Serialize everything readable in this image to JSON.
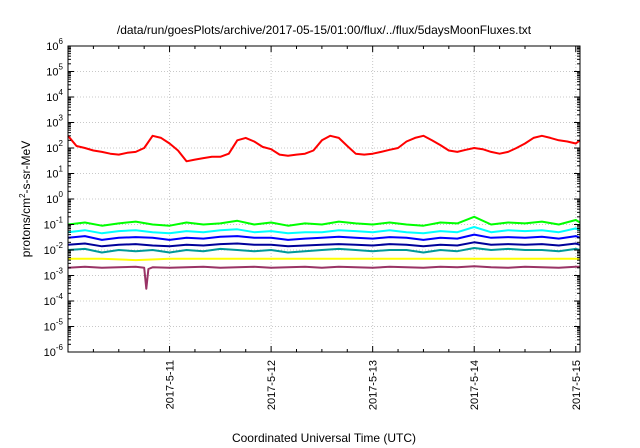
{
  "chart_data": {
    "type": "line",
    "title": "/data/run/goesPlots/archive/2017-05-15/01:00/flux/../flux/5daysMoonFluxes.txt",
    "xlabel": "Coordinated Universal Time (UTC)",
    "ylabel": {
      "prefix": "protons/cm",
      "sup": "2",
      "suffix": "-s-sr-MeV"
    },
    "y_scale": "log",
    "ylim_exp": [
      -6,
      6
    ],
    "y_tick_labels": [
      {
        "base": "10",
        "exp": "6"
      },
      {
        "base": "10",
        "exp": "5"
      },
      {
        "base": "10",
        "exp": "4"
      },
      {
        "base": "10",
        "exp": "3"
      },
      {
        "base": "10",
        "exp": "2"
      },
      {
        "base": "10",
        "exp": "1"
      },
      {
        "base": "10",
        "exp": "0"
      },
      {
        "base": "10",
        "exp": "-1"
      },
      {
        "base": "10",
        "exp": "-2"
      },
      {
        "base": "10",
        "exp": "-3"
      },
      {
        "base": "10",
        "exp": "-4"
      },
      {
        "base": "10",
        "exp": "-5"
      },
      {
        "base": "10",
        "exp": "-6"
      }
    ],
    "x_range": [
      "2017-05-10T00:00",
      "2017-05-15T01:00"
    ],
    "x_ticks": [
      "2017-5-11",
      "2017-5-12",
      "2017-5-13",
      "2017-5-14",
      "2017-5-15"
    ],
    "grid": true,
    "legend": "none",
    "series": [
      {
        "color": "#ff0000",
        "x_hours": [
          0,
          2,
          4,
          6,
          8,
          10,
          12,
          14,
          16,
          18,
          20,
          22,
          24,
          26,
          28,
          30,
          32,
          34,
          36,
          38,
          40,
          42,
          44,
          46,
          48,
          50,
          52,
          54,
          56,
          58,
          60,
          62,
          64,
          66,
          68,
          70,
          72,
          74,
          76,
          78,
          80,
          82,
          84,
          86,
          88,
          90,
          92,
          94,
          96,
          98,
          100,
          102,
          104,
          106,
          108,
          110,
          112,
          114,
          116,
          118,
          120,
          121
        ],
        "y": [
          300,
          120,
          100,
          80,
          70,
          60,
          55,
          65,
          70,
          100,
          300,
          250,
          150,
          80,
          30,
          35,
          40,
          45,
          45,
          60,
          200,
          250,
          180,
          110,
          90,
          55,
          50,
          55,
          60,
          80,
          200,
          300,
          250,
          120,
          60,
          55,
          60,
          70,
          85,
          100,
          180,
          250,
          300,
          200,
          130,
          80,
          70,
          85,
          100,
          90,
          70,
          60,
          70,
          100,
          150,
          250,
          300,
          250,
          200,
          180,
          150,
          200
        ]
      },
      {
        "color": "#00ff00",
        "x_hours": [
          0,
          4,
          8,
          12,
          16,
          20,
          24,
          28,
          32,
          36,
          40,
          44,
          48,
          52,
          56,
          60,
          64,
          68,
          72,
          76,
          80,
          84,
          88,
          92,
          96,
          100,
          104,
          108,
          112,
          116,
          120,
          121
        ],
        "y": [
          0.1,
          0.12,
          0.09,
          0.11,
          0.13,
          0.1,
          0.09,
          0.12,
          0.1,
          0.11,
          0.14,
          0.1,
          0.12,
          0.09,
          0.11,
          0.1,
          0.13,
          0.11,
          0.1,
          0.12,
          0.1,
          0.09,
          0.12,
          0.11,
          0.2,
          0.1,
          0.12,
          0.11,
          0.13,
          0.1,
          0.15,
          0.12
        ]
      },
      {
        "color": "#00ffff",
        "x_hours": [
          0,
          4,
          8,
          12,
          16,
          20,
          24,
          28,
          32,
          36,
          40,
          44,
          48,
          52,
          56,
          60,
          64,
          68,
          72,
          76,
          80,
          84,
          88,
          92,
          96,
          100,
          104,
          108,
          112,
          116,
          120,
          121
        ],
        "y": [
          0.05,
          0.06,
          0.045,
          0.055,
          0.06,
          0.05,
          0.045,
          0.055,
          0.05,
          0.06,
          0.065,
          0.05,
          0.055,
          0.045,
          0.05,
          0.05,
          0.06,
          0.055,
          0.05,
          0.06,
          0.05,
          0.045,
          0.055,
          0.05,
          0.08,
          0.05,
          0.06,
          0.055,
          0.06,
          0.05,
          0.07,
          0.06
        ]
      },
      {
        "color": "#0000ff",
        "x_hours": [
          0,
          4,
          8,
          12,
          16,
          20,
          24,
          28,
          32,
          36,
          40,
          44,
          48,
          52,
          56,
          60,
          64,
          68,
          72,
          76,
          80,
          84,
          88,
          92,
          96,
          100,
          104,
          108,
          112,
          116,
          120,
          121
        ],
        "y": [
          0.03,
          0.035,
          0.025,
          0.03,
          0.032,
          0.03,
          0.025,
          0.03,
          0.028,
          0.033,
          0.035,
          0.03,
          0.03,
          0.025,
          0.028,
          0.03,
          0.033,
          0.03,
          0.028,
          0.032,
          0.03,
          0.025,
          0.03,
          0.028,
          0.04,
          0.03,
          0.032,
          0.03,
          0.033,
          0.028,
          0.035,
          0.03
        ]
      },
      {
        "color": "#000099",
        "x_hours": [
          0,
          4,
          8,
          12,
          16,
          20,
          24,
          28,
          32,
          36,
          40,
          44,
          48,
          52,
          56,
          60,
          64,
          68,
          72,
          76,
          80,
          84,
          88,
          92,
          96,
          100,
          104,
          108,
          112,
          116,
          120,
          121
        ],
        "y": [
          0.016,
          0.018,
          0.014,
          0.016,
          0.017,
          0.015,
          0.014,
          0.016,
          0.015,
          0.017,
          0.018,
          0.016,
          0.016,
          0.014,
          0.015,
          0.016,
          0.017,
          0.016,
          0.015,
          0.017,
          0.016,
          0.014,
          0.016,
          0.015,
          0.02,
          0.016,
          0.017,
          0.016,
          0.017,
          0.015,
          0.018,
          0.016
        ]
      },
      {
        "color": "#009999",
        "x_hours": [
          0,
          4,
          8,
          12,
          16,
          20,
          24,
          28,
          32,
          36,
          40,
          44,
          48,
          52,
          56,
          60,
          64,
          68,
          72,
          76,
          80,
          84,
          88,
          92,
          96,
          100,
          104,
          108,
          112,
          116,
          120,
          121
        ],
        "y": [
          0.01,
          0.011,
          0.008,
          0.01,
          0.009,
          0.01,
          0.008,
          0.01,
          0.009,
          0.011,
          0.01,
          0.009,
          0.01,
          0.008,
          0.009,
          0.01,
          0.011,
          0.01,
          0.009,
          0.01,
          0.01,
          0.008,
          0.01,
          0.009,
          0.012,
          0.01,
          0.011,
          0.01,
          0.01,
          0.009,
          0.011,
          0.01
        ]
      },
      {
        "color": "#ffff00",
        "x_hours": [
          0,
          8,
          16,
          24,
          32,
          40,
          48,
          56,
          64,
          72,
          80,
          88,
          96,
          104,
          112,
          120,
          121
        ],
        "y": [
          0.0045,
          0.0045,
          0.004,
          0.0045,
          0.0045,
          0.0045,
          0.0045,
          0.0045,
          0.0045,
          0.0045,
          0.0045,
          0.0045,
          0.0045,
          0.0045,
          0.0045,
          0.0045,
          0.0045
        ]
      },
      {
        "color": "#993366",
        "x_hours": [
          0,
          4,
          8,
          12,
          16,
          18,
          18.5,
          19,
          20,
          24,
          28,
          32,
          36,
          40,
          44,
          48,
          52,
          56,
          60,
          64,
          68,
          72,
          76,
          80,
          84,
          88,
          92,
          96,
          100,
          104,
          108,
          112,
          116,
          120,
          121
        ],
        "y": [
          0.002,
          0.0022,
          0.002,
          0.0021,
          0.0022,
          0.002,
          0.0003,
          0.0018,
          0.0021,
          0.002,
          0.0021,
          0.0022,
          0.002,
          0.0021,
          0.0022,
          0.002,
          0.0021,
          0.0022,
          0.002,
          0.0022,
          0.0021,
          0.002,
          0.0022,
          0.0021,
          0.002,
          0.0022,
          0.0021,
          0.0023,
          0.0021,
          0.002,
          0.0022,
          0.0021,
          0.002,
          0.0022,
          0.0022
        ]
      }
    ]
  }
}
